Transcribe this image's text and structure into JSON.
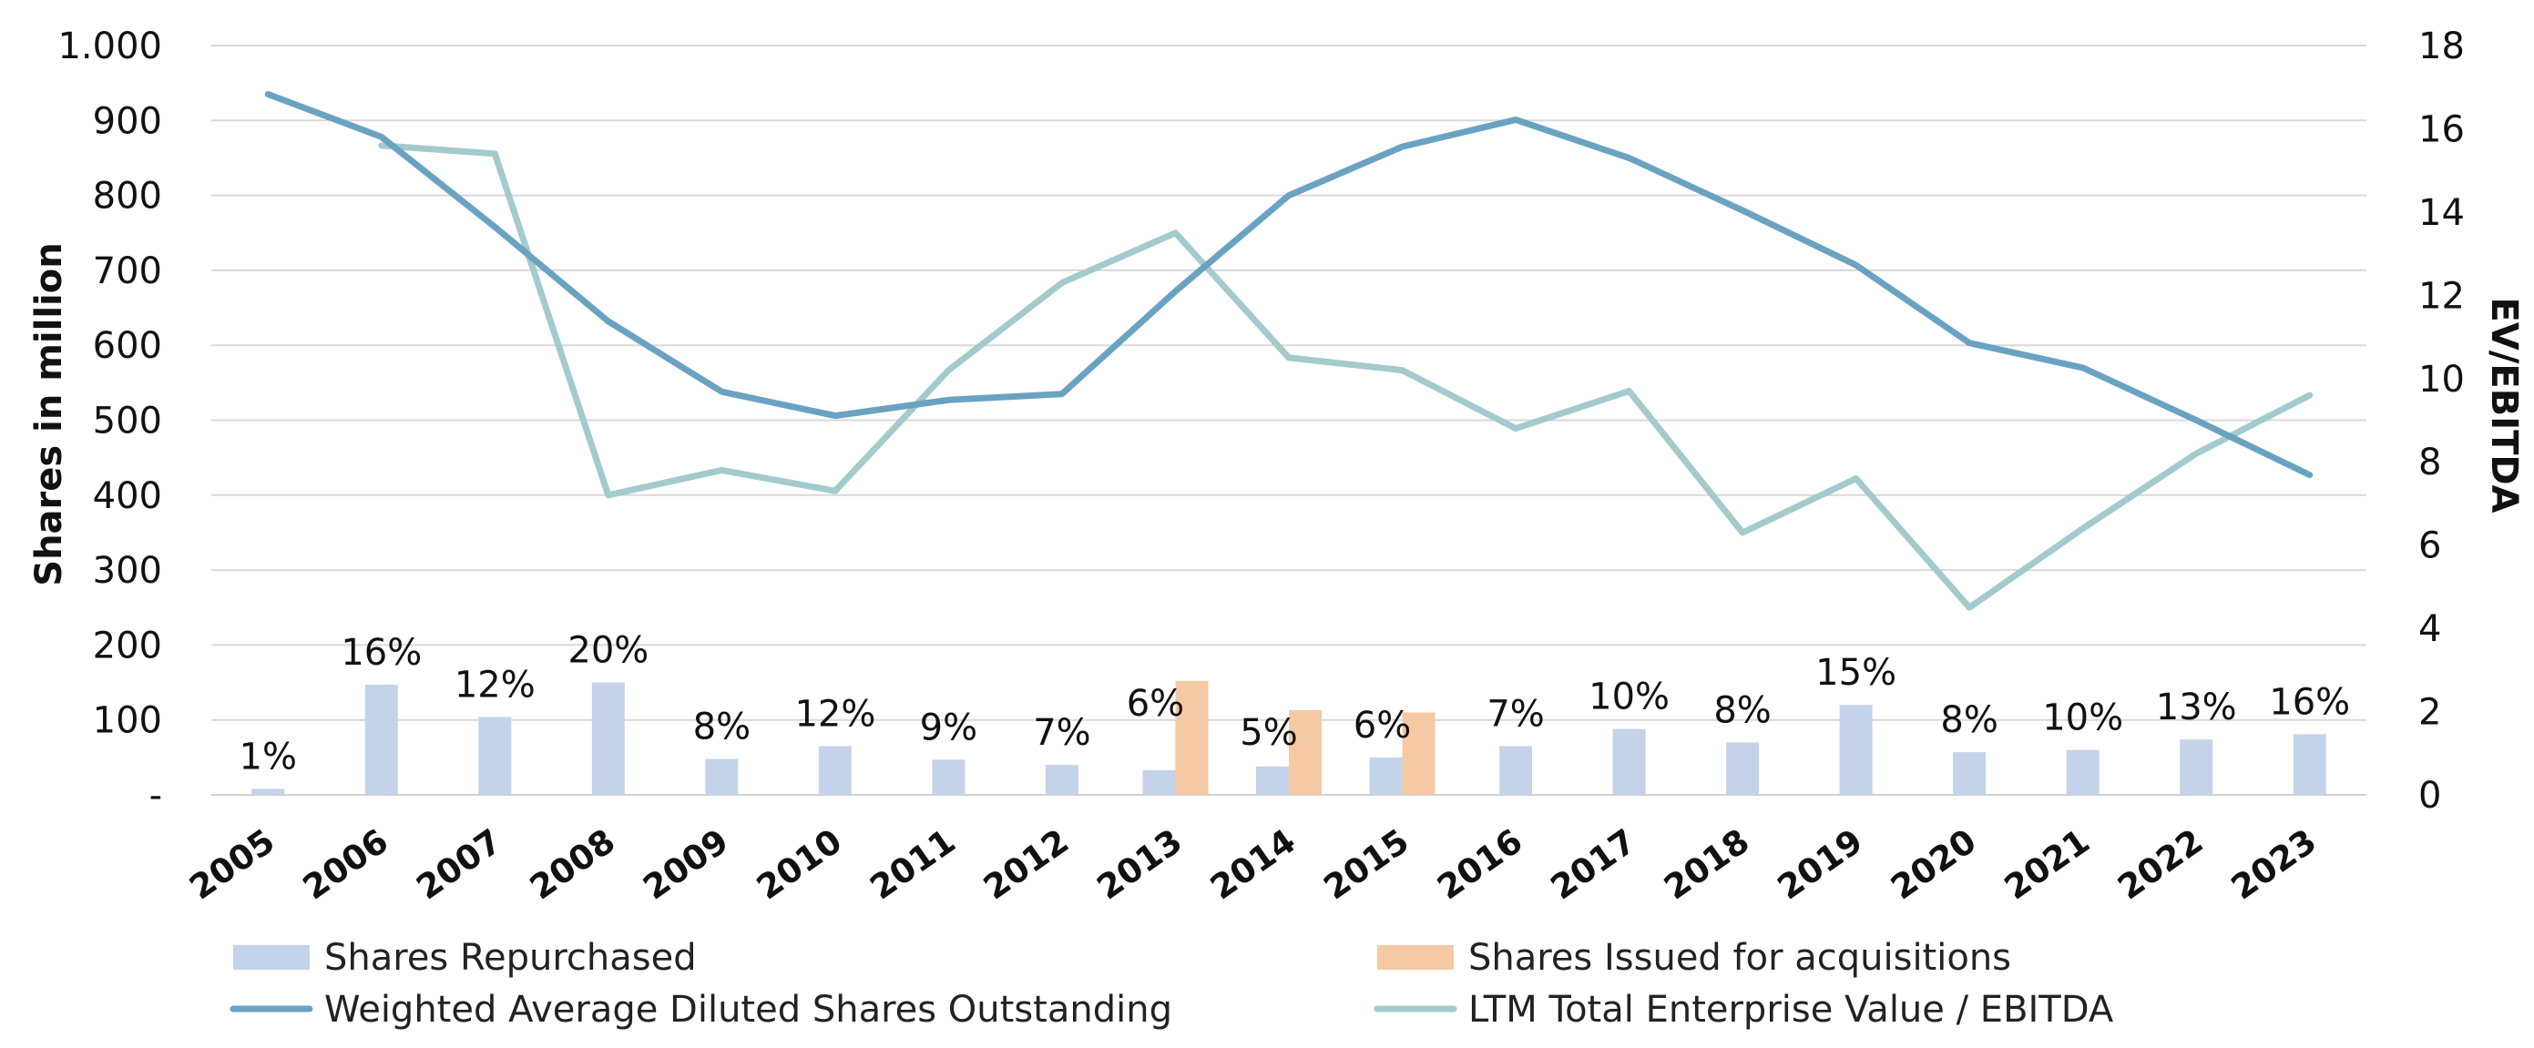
{
  "chart_data": {
    "type": "bar",
    "categories": [
      "2005",
      "2006",
      "2007",
      "2008",
      "2009",
      "2010",
      "2011",
      "2012",
      "2013",
      "2014",
      "2015",
      "2016",
      "2017",
      "2018",
      "2019",
      "2020",
      "2021",
      "2022",
      "2023"
    ],
    "ylabel": "Shares in million",
    "y2label": "EV/EBITDA",
    "ylim": [
      0,
      1000
    ],
    "y2lim": [
      0,
      18
    ],
    "y_ticks": [
      "-",
      "100",
      "200",
      "300",
      "400",
      "500",
      "600",
      "700",
      "800",
      "900",
      "1.000"
    ],
    "y2_ticks": [
      "0",
      "2",
      "4",
      "6",
      "8",
      "10",
      "12",
      "14",
      "16",
      "18"
    ],
    "grid": true,
    "legend_position": "bottom",
    "colors": {
      "repurchased": "#c5d3ea",
      "issued": "#f5c9a3",
      "shares_line": "#6aa2c2",
      "ev_line": "#a3cacc"
    },
    "series": [
      {
        "name": "Shares Repurchased",
        "type": "bar",
        "axis": "left",
        "values": [
          8,
          147,
          104,
          150,
          48,
          65,
          47,
          40,
          33,
          38,
          50,
          65,
          88,
          70,
          120,
          57,
          60,
          74,
          81
        ]
      },
      {
        "name": "Shares Issued for acquisitions",
        "type": "bar",
        "axis": "left",
        "values": [
          null,
          null,
          null,
          null,
          null,
          null,
          null,
          null,
          152,
          113,
          110,
          null,
          null,
          null,
          null,
          null,
          null,
          null,
          null
        ]
      },
      {
        "name": "Weighted Average Diluted Shares Outstanding",
        "type": "line",
        "axis": "left",
        "values": [
          935,
          878,
          758,
          632,
          538,
          506,
          527,
          535,
          672,
          800,
          865,
          901,
          850,
          780,
          707,
          603,
          570,
          500,
          427
        ]
      },
      {
        "name": "LTM Total Enterprise Value / EBITDA",
        "type": "line",
        "axis": "right",
        "values": [
          null,
          15.6,
          15.4,
          7.2,
          7.8,
          7.3,
          10.2,
          12.3,
          13.5,
          10.5,
          10.2,
          8.8,
          9.7,
          6.3,
          7.6,
          4.5,
          6.4,
          8.2,
          9.6
        ]
      }
    ],
    "annotations": [
      "1%",
      "16%",
      "12%",
      "20%",
      "8%",
      "12%",
      "9%",
      "7%",
      "6%",
      "5%",
      "6%",
      "7%",
      "10%",
      "8%",
      "15%",
      "8%",
      "10%",
      "13%",
      "16%"
    ]
  }
}
